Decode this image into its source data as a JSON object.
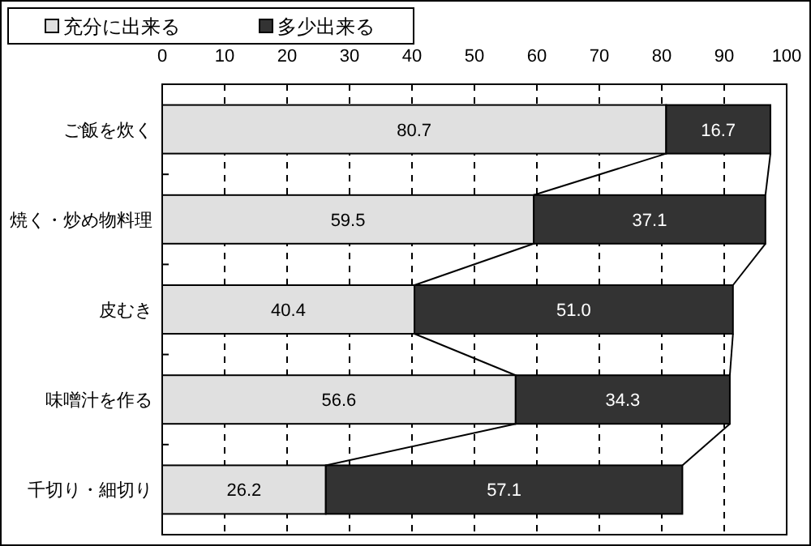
{
  "chart_data": {
    "type": "bar",
    "orientation": "horizontal",
    "stacked": true,
    "categories": [
      "ご飯を炊く",
      "焼く・炒め物料理",
      "皮むき",
      "味噌汁を作る",
      "千切り・細切り"
    ],
    "series": [
      {
        "name": "充分に出来る",
        "color": "#e0e0e0",
        "values": [
          80.7,
          59.5,
          40.4,
          56.6,
          26.2
        ],
        "value_labels": [
          "80.7",
          "59.5",
          "40.4",
          "56.6",
          "26.2"
        ]
      },
      {
        "name": "多少出来る",
        "color": "#333333",
        "values": [
          16.7,
          37.1,
          51.0,
          34.3,
          57.1
        ],
        "value_labels": [
          "16.7",
          "37.1",
          "51.0",
          "34.3",
          "57.1"
        ]
      }
    ],
    "xlim": [
      0,
      100
    ],
    "xticks": [
      0,
      10,
      20,
      30,
      40,
      50,
      60,
      70,
      80,
      90,
      100
    ],
    "grid": "x",
    "legend": "top left"
  }
}
